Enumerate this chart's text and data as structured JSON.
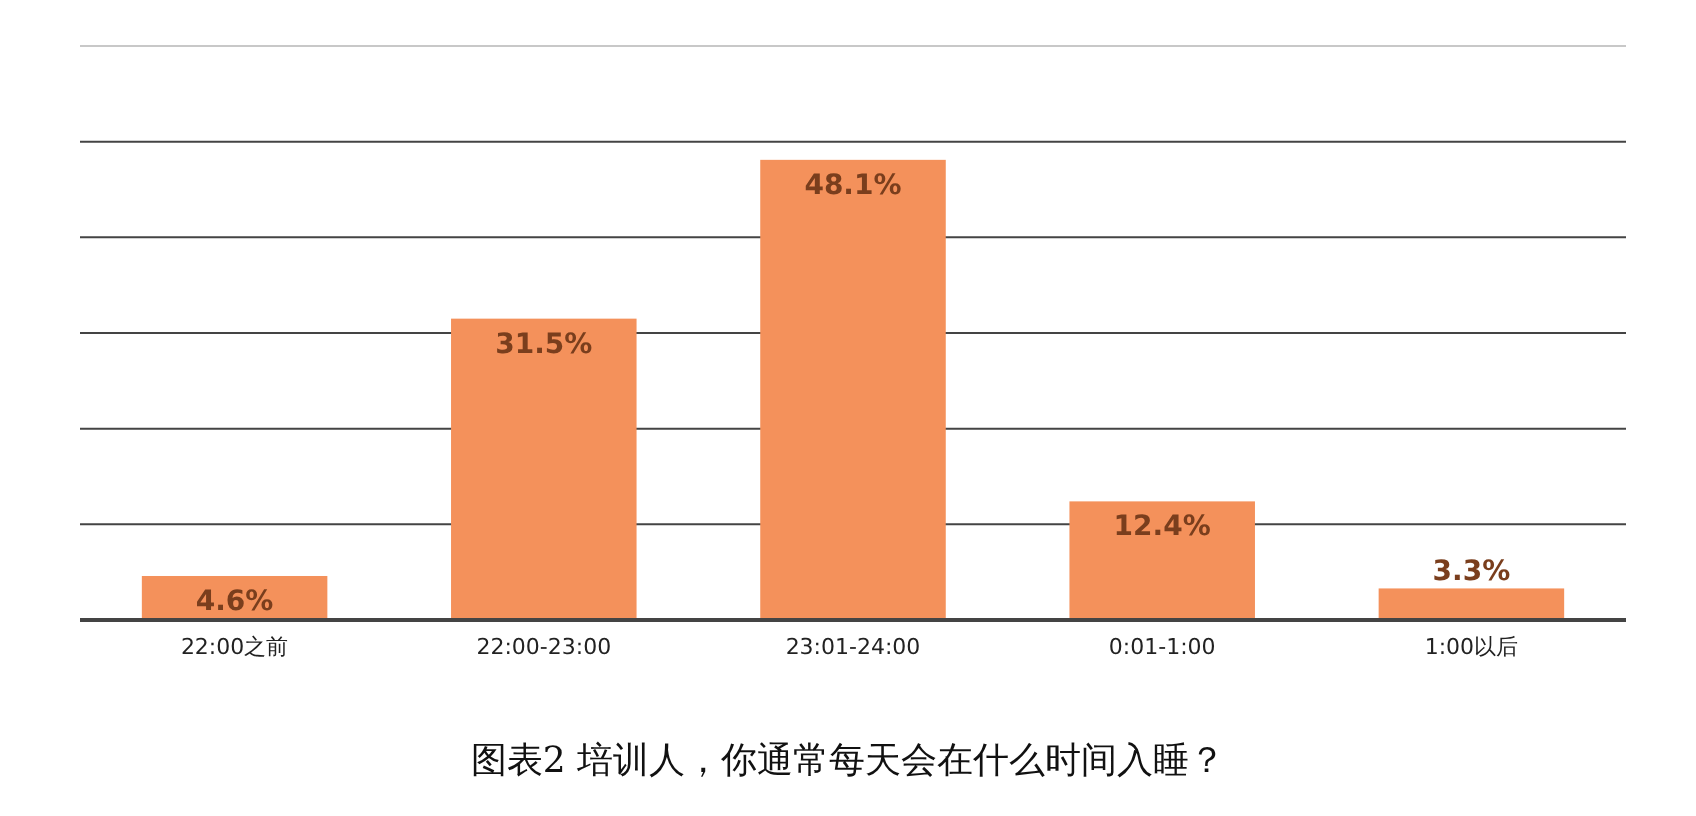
{
  "chart_data": {
    "type": "bar",
    "title": "图表2  培训人，你通常每天会在什么时间入睡？",
    "categories": [
      "22:00之前",
      "22:00-23:00",
      "23:01-24:00",
      "0:01-1:00",
      "1:00以后"
    ],
    "values": [
      4.6,
      31.5,
      48.1,
      12.4,
      3.3
    ],
    "value_labels": [
      "4.6%",
      "31.5%",
      "48.1%",
      "12.4%",
      "3.3%"
    ],
    "color": "#f4915b",
    "ylim": [
      0,
      60
    ],
    "yticks": [
      {
        "value": 0,
        "label": null
      },
      {
        "value": 10,
        "label": null
      },
      {
        "value": 20,
        "label": null
      },
      {
        "value": 30,
        "label": null
      },
      {
        "value": 40,
        "label": null
      },
      {
        "value": 50,
        "label": null
      },
      {
        "value": 60,
        "label": null
      }
    ],
    "grid": "y",
    "tick_labels": "x"
  }
}
